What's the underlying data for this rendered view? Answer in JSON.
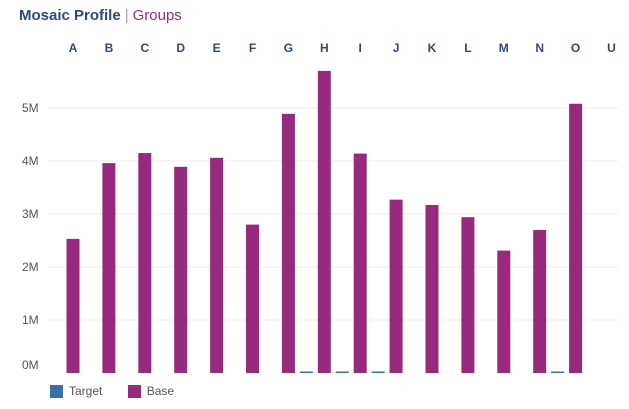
{
  "header": {
    "title": "Mosaic Profile",
    "separator": "|",
    "subtitle": "Groups"
  },
  "colors": {
    "target": "#3d6fae",
    "base": "#97297f",
    "grid": "#ececec",
    "axis_text": "#555555",
    "category_text": "#2c4a7c"
  },
  "chart_data": {
    "type": "bar",
    "categories": [
      "A",
      "B",
      "C",
      "D",
      "E",
      "F",
      "G",
      "H",
      "I",
      "J",
      "K",
      "L",
      "M",
      "N",
      "O",
      "U"
    ],
    "series": [
      {
        "name": "Target",
        "values": [
          0,
          0,
          0,
          0,
          0,
          0,
          20000,
          20000,
          20000,
          0,
          0,
          0,
          0,
          20000,
          0,
          0
        ]
      },
      {
        "name": "Base",
        "values": [
          2530000,
          3960000,
          4150000,
          3890000,
          4060000,
          2800000,
          4890000,
          5700000,
          4140000,
          3270000,
          3170000,
          2940000,
          2310000,
          2700000,
          5080000,
          0
        ]
      }
    ],
    "yticks": [
      "0M",
      "1M",
      "2M",
      "3M",
      "4M",
      "5M"
    ],
    "ylim": [
      0,
      5900000
    ],
    "grid": true,
    "legend": "bottom-left",
    "category_axis": "top"
  }
}
